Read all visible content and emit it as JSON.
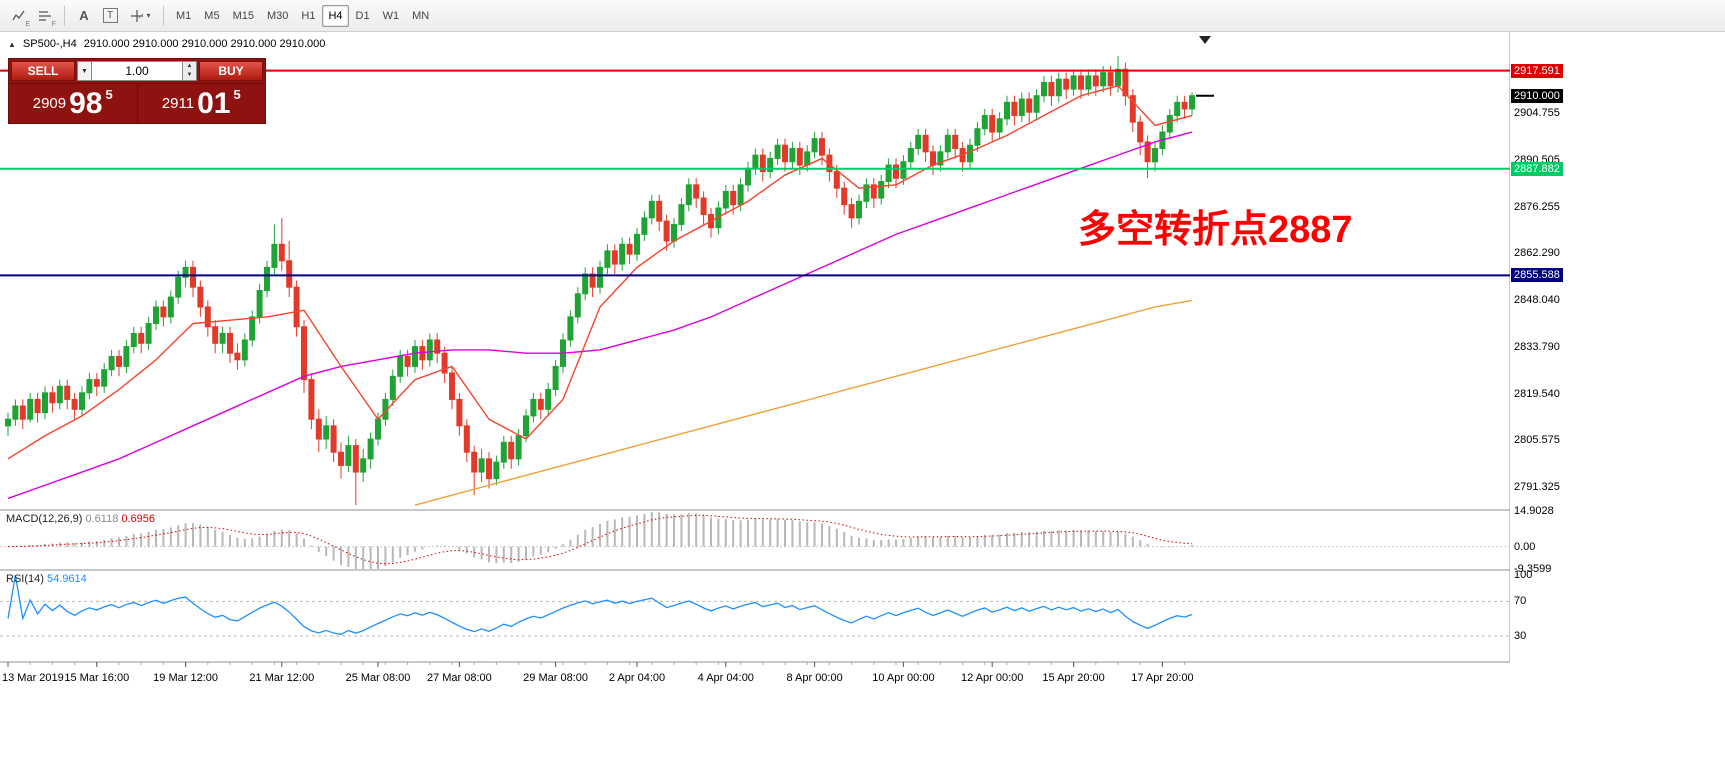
{
  "toolbar": {
    "icon_a": "A",
    "icon_t": "T",
    "sub_e": "E",
    "sub_f": "F",
    "caret": "▾",
    "timeframes": [
      "M1",
      "M5",
      "M15",
      "M30",
      "H1",
      "H4",
      "D1",
      "W1",
      "MN"
    ],
    "active_timeframe": "H4"
  },
  "chart": {
    "symbol_line": {
      "marker": "▲",
      "symbol": "SP500-,H4",
      "ohlc": "2910.000 2910.000 2910.000 2910.000 2910.000"
    },
    "trade_panel": {
      "sell_label": "SELL",
      "buy_label": "BUY",
      "volume": "1.00",
      "sell_price": {
        "prefix": "2909",
        "big": "98",
        "sup": "5"
      },
      "buy_price": {
        "prefix": "2911",
        "big": "01",
        "sup": "5"
      }
    },
    "annotation": {
      "text": "多空转折点2887",
      "color": "#ff0000"
    },
    "levels": [
      {
        "value": 2917.591,
        "label": "2917.591",
        "color": "#dd0000"
      },
      {
        "value": 2887.882,
        "label": "2887.882",
        "color": "#00cc66"
      },
      {
        "value": 2855.588,
        "label": "2855.588",
        "color": "#000080"
      }
    ],
    "current_price": {
      "value": 2910.0,
      "label": "2910.000",
      "bg": "#000000"
    },
    "scale_ticks": [
      "2904.755",
      "2890.505",
      "2876.255",
      "2862.290",
      "2848.040",
      "2833.790",
      "2819.540",
      "2805.575",
      "2791.325"
    ]
  },
  "chart_data": {
    "type": "candlestick",
    "symbol": "SP500-",
    "timeframe": "H4",
    "price_axis": {
      "visible_max": 2929,
      "visible_min": 2784.5
    },
    "colors": {
      "up": "#1fa335",
      "down": "#e23a2a",
      "ma_red": "#f4442e",
      "ma_magenta": "#dd00dd",
      "ma_orange": "#eda13a"
    },
    "candles": [
      [
        2810,
        2814,
        2807,
        2812
      ],
      [
        2812,
        2818,
        2810,
        2816
      ],
      [
        2816,
        2818,
        2809,
        2812
      ],
      [
        2812,
        2820,
        2811,
        2818
      ],
      [
        2818,
        2820,
        2811,
        2814
      ],
      [
        2814,
        2822,
        2812,
        2820
      ],
      [
        2820,
        2822,
        2814,
        2817
      ],
      [
        2817,
        2824,
        2815,
        2822
      ],
      [
        2822,
        2824,
        2815,
        2818
      ],
      [
        2818,
        2820,
        2812,
        2815
      ],
      [
        2815,
        2822,
        2813,
        2820
      ],
      [
        2820,
        2826,
        2818,
        2824
      ],
      [
        2824,
        2826,
        2819,
        2822
      ],
      [
        2822,
        2829,
        2820,
        2827
      ],
      [
        2827,
        2833,
        2825,
        2831
      ],
      [
        2831,
        2833,
        2825,
        2828
      ],
      [
        2828,
        2836,
        2826,
        2834
      ],
      [
        2834,
        2840,
        2832,
        2838
      ],
      [
        2838,
        2840,
        2832,
        2835
      ],
      [
        2835,
        2843,
        2833,
        2841
      ],
      [
        2841,
        2848,
        2839,
        2846
      ],
      [
        2846,
        2848,
        2840,
        2843
      ],
      [
        2843,
        2851,
        2841,
        2849
      ],
      [
        2849,
        2857,
        2847,
        2855
      ],
      [
        2855,
        2860,
        2852,
        2858
      ],
      [
        2858,
        2860,
        2849,
        2852
      ],
      [
        2852,
        2854,
        2843,
        2846
      ],
      [
        2846,
        2848,
        2837,
        2840
      ],
      [
        2840,
        2842,
        2832,
        2835
      ],
      [
        2835,
        2840,
        2832,
        2838
      ],
      [
        2838,
        2840,
        2829,
        2832
      ],
      [
        2832,
        2835,
        2827,
        2830
      ],
      [
        2830,
        2838,
        2828,
        2836
      ],
      [
        2836,
        2845,
        2834,
        2843
      ],
      [
        2843,
        2853,
        2841,
        2851
      ],
      [
        2851,
        2860,
        2849,
        2858
      ],
      [
        2858,
        2871,
        2856,
        2865
      ],
      [
        2865,
        2873,
        2857,
        2860
      ],
      [
        2860,
        2866,
        2849,
        2852
      ],
      [
        2852,
        2854,
        2837,
        2840
      ],
      [
        2840,
        2842,
        2820,
        2824
      ],
      [
        2824,
        2826,
        2809,
        2812
      ],
      [
        2812,
        2815,
        2802,
        2806
      ],
      [
        2806,
        2813,
        2803,
        2810
      ],
      [
        2810,
        2812,
        2799,
        2802
      ],
      [
        2802,
        2805,
        2794,
        2798
      ],
      [
        2798,
        2807,
        2796,
        2804
      ],
      [
        2804,
        2806,
        2786,
        2796
      ],
      [
        2796,
        2803,
        2793,
        2800
      ],
      [
        2800,
        2808,
        2797,
        2806
      ],
      [
        2806,
        2814,
        2804,
        2812
      ],
      [
        2812,
        2820,
        2810,
        2818
      ],
      [
        2818,
        2827,
        2816,
        2825
      ],
      [
        2825,
        2833,
        2823,
        2831
      ],
      [
        2831,
        2833,
        2825,
        2828
      ],
      [
        2828,
        2836,
        2826,
        2834
      ],
      [
        2834,
        2836,
        2827,
        2830
      ],
      [
        2830,
        2838,
        2828,
        2836
      ],
      [
        2836,
        2838,
        2829,
        2832
      ],
      [
        2832,
        2834,
        2823,
        2826
      ],
      [
        2826,
        2828,
        2815,
        2818
      ],
      [
        2818,
        2820,
        2807,
        2810
      ],
      [
        2810,
        2812,
        2799,
        2802
      ],
      [
        2802,
        2804,
        2789,
        2796
      ],
      [
        2796,
        2803,
        2793,
        2800
      ],
      [
        2800,
        2802,
        2791,
        2794
      ],
      [
        2794,
        2801,
        2792,
        2799
      ],
      [
        2799,
        2807,
        2797,
        2805
      ],
      [
        2805,
        2807,
        2797,
        2800
      ],
      [
        2800,
        2809,
        2798,
        2807
      ],
      [
        2807,
        2815,
        2805,
        2813
      ],
      [
        2813,
        2820,
        2811,
        2818
      ],
      [
        2818,
        2820,
        2812,
        2815
      ],
      [
        2815,
        2823,
        2813,
        2821
      ],
      [
        2821,
        2830,
        2819,
        2828
      ],
      [
        2828,
        2838,
        2826,
        2836
      ],
      [
        2836,
        2845,
        2834,
        2843
      ],
      [
        2843,
        2852,
        2841,
        2850
      ],
      [
        2850,
        2858,
        2848,
        2856
      ],
      [
        2856,
        2858,
        2849,
        2852
      ],
      [
        2852,
        2860,
        2850,
        2858
      ],
      [
        2858,
        2865,
        2856,
        2863
      ],
      [
        2863,
        2865,
        2856,
        2859
      ],
      [
        2859,
        2867,
        2857,
        2865
      ],
      [
        2865,
        2867,
        2859,
        2862
      ],
      [
        2862,
        2870,
        2860,
        2868
      ],
      [
        2868,
        2875,
        2866,
        2873
      ],
      [
        2873,
        2880,
        2871,
        2878
      ],
      [
        2878,
        2880,
        2869,
        2872
      ],
      [
        2872,
        2874,
        2863,
        2866
      ],
      [
        2866,
        2873,
        2864,
        2871
      ],
      [
        2871,
        2879,
        2869,
        2877
      ],
      [
        2877,
        2885,
        2875,
        2883
      ],
      [
        2883,
        2885,
        2876,
        2879
      ],
      [
        2879,
        2881,
        2871,
        2874
      ],
      [
        2874,
        2876,
        2867,
        2870
      ],
      [
        2870,
        2878,
        2868,
        2876
      ],
      [
        2876,
        2883,
        2874,
        2881
      ],
      [
        2881,
        2883,
        2874,
        2877
      ],
      [
        2877,
        2885,
        2875,
        2883
      ],
      [
        2883,
        2890,
        2881,
        2888
      ],
      [
        2888,
        2894,
        2886,
        2892
      ],
      [
        2892,
        2894,
        2884,
        2887
      ],
      [
        2887,
        2893,
        2885,
        2891
      ],
      [
        2891,
        2897,
        2889,
        2895
      ],
      [
        2895,
        2897,
        2887,
        2890
      ],
      [
        2890,
        2896,
        2888,
        2894
      ],
      [
        2894,
        2896,
        2886,
        2889
      ],
      [
        2889,
        2895,
        2887,
        2893
      ],
      [
        2893,
        2899,
        2891,
        2897
      ],
      [
        2897,
        2899,
        2889,
        2892
      ],
      [
        2892,
        2894,
        2884,
        2887
      ],
      [
        2887,
        2889,
        2879,
        2882
      ],
      [
        2882,
        2884,
        2874,
        2877
      ],
      [
        2877,
        2879,
        2870,
        2873
      ],
      [
        2873,
        2880,
        2871,
        2878
      ],
      [
        2878,
        2885,
        2876,
        2883
      ],
      [
        2883,
        2885,
        2876,
        2879
      ],
      [
        2879,
        2886,
        2877,
        2884
      ],
      [
        2884,
        2891,
        2882,
        2889
      ],
      [
        2889,
        2891,
        2882,
        2885
      ],
      [
        2885,
        2892,
        2883,
        2890
      ],
      [
        2890,
        2896,
        2888,
        2894
      ],
      [
        2894,
        2900,
        2892,
        2898
      ],
      [
        2898,
        2900,
        2890,
        2893
      ],
      [
        2893,
        2895,
        2886,
        2889
      ],
      [
        2889,
        2895,
        2887,
        2893
      ],
      [
        2893,
        2900,
        2891,
        2898
      ],
      [
        2898,
        2900,
        2891,
        2894
      ],
      [
        2894,
        2896,
        2887,
        2890
      ],
      [
        2890,
        2897,
        2888,
        2895
      ],
      [
        2895,
        2902,
        2893,
        2900
      ],
      [
        2900,
        2906,
        2898,
        2904
      ],
      [
        2904,
        2906,
        2896,
        2899
      ],
      [
        2899,
        2905,
        2897,
        2903
      ],
      [
        2903,
        2910,
        2901,
        2908
      ],
      [
        2908,
        2910,
        2901,
        2904
      ],
      [
        2904,
        2911,
        2902,
        2909
      ],
      [
        2909,
        2911,
        2902,
        2905
      ],
      [
        2905,
        2912,
        2903,
        2910
      ],
      [
        2910,
        2916,
        2908,
        2914
      ],
      [
        2914,
        2916,
        2907,
        2910
      ],
      [
        2910,
        2917,
        2908,
        2915
      ],
      [
        2915,
        2917,
        2909,
        2912
      ],
      [
        2912,
        2918,
        2910,
        2916
      ],
      [
        2916,
        2918,
        2909,
        2912
      ],
      [
        2912,
        2918,
        2910,
        2916
      ],
      [
        2916,
        2918,
        2910,
        2913
      ],
      [
        2913,
        2919,
        2911,
        2917
      ],
      [
        2917,
        2919,
        2910,
        2913
      ],
      [
        2913,
        2922,
        2911,
        2918
      ],
      [
        2918,
        2920,
        2907,
        2910
      ],
      [
        2910,
        2912,
        2899,
        2902
      ],
      [
        2902,
        2904,
        2892,
        2896
      ],
      [
        2896,
        2898,
        2885,
        2890
      ],
      [
        2890,
        2896,
        2887,
        2894
      ],
      [
        2894,
        2901,
        2892,
        2899
      ],
      [
        2899,
        2906,
        2897,
        2904
      ],
      [
        2904,
        2910,
        2902,
        2908
      ],
      [
        2908,
        2910,
        2903,
        2906
      ],
      [
        2906,
        2911,
        2904,
        2910
      ]
    ],
    "ma_red": {
      "start": 0,
      "step": 5,
      "values": [
        2800,
        2807,
        2813,
        2821,
        2830,
        2841,
        2842,
        2843,
        2845,
        2828,
        2812,
        2824,
        2828,
        2812,
        2806,
        2818,
        2846,
        2858,
        2866,
        2872,
        2878,
        2886,
        2891,
        2882,
        2883,
        2889,
        2893,
        2898,
        2904,
        2910,
        2913,
        2901,
        2904
      ]
    },
    "ma_magenta": {
      "start": 0,
      "step": 5,
      "values": [
        2788,
        2792,
        2796,
        2800,
        2805,
        2810,
        2815,
        2820,
        2825,
        2828,
        2830,
        2832,
        2833,
        2833,
        2832,
        2832,
        2833,
        2836,
        2839,
        2843,
        2848,
        2853,
        2858,
        2863,
        2868,
        2872,
        2876,
        2880,
        2884,
        2888,
        2892,
        2896,
        2899
      ]
    },
    "ma_orange": {
      "start": 55,
      "step": 5,
      "values": [
        2786,
        2789,
        2792,
        2795,
        2798,
        2801,
        2804,
        2807,
        2810,
        2813,
        2816,
        2819,
        2822,
        2825,
        2828,
        2831,
        2834,
        2837,
        2840,
        2843,
        2846,
        2848
      ]
    },
    "time_labels": [
      {
        "i": 0,
        "t": "13 Mar 2019"
      },
      {
        "i": 12,
        "t": "15 Mar 16:00"
      },
      {
        "i": 24,
        "t": "19 Mar 12:00"
      },
      {
        "i": 37,
        "t": "21 Mar 12:00"
      },
      {
        "i": 50,
        "t": "25 Mar 08:00"
      },
      {
        "i": 61,
        "t": "27 Mar 08:00"
      },
      {
        "i": 74,
        "t": "29 Mar 08:00"
      },
      {
        "i": 85,
        "t": "2 Apr 04:00"
      },
      {
        "i": 97,
        "t": "4 Apr 04:00"
      },
      {
        "i": 109,
        "t": "8 Apr 00:00"
      },
      {
        "i": 121,
        "t": "10 Apr 00:00"
      },
      {
        "i": 133,
        "t": "12 Apr 00:00"
      },
      {
        "i": 144,
        "t": "15 Apr 20:00"
      },
      {
        "i": 156,
        "t": "17 Apr 20:00"
      }
    ]
  },
  "macd": {
    "label": "MACD(12,26,9)",
    "value_main": "0.6118",
    "value_signal": "0.6956",
    "scale_max": 14.9028,
    "scale_min": -9.3599,
    "scale_items": [
      {
        "text": "14.9028",
        "value": 14.9028
      },
      {
        "text": "0.00",
        "value": 0
      },
      {
        "text": "-9.3599",
        "value": -9.3599
      }
    ],
    "hist_color": "#b8b8b8",
    "signal_color": "#d40000"
  },
  "rsi": {
    "label": "RSI(14)",
    "value": "54.9614",
    "color": "#1e90ff",
    "levels_dashed": [
      70,
      30
    ],
    "scale_items": [
      {
        "text": "100",
        "value": 100
      },
      {
        "text": "70",
        "value": 70
      },
      {
        "text": "30",
        "value": 30
      }
    ]
  }
}
